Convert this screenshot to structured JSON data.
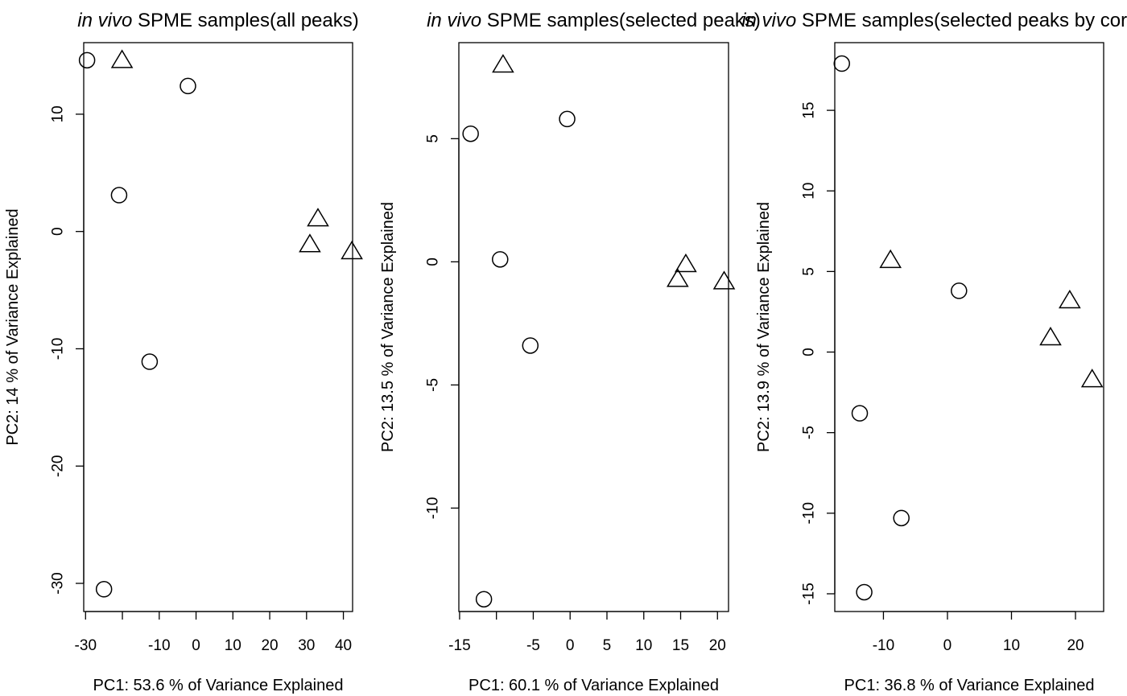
{
  "chart_data": [
    {
      "type": "scatter",
      "title_prefix": "in vivo",
      "title": " SPME samples(all peaks)",
      "xlabel": "PC1: 53.6 % of Variance Explained",
      "ylabel": "PC2: 14 % of Variance Explained",
      "xlim": [
        -30.5,
        42.5
      ],
      "ylim": [
        -32.4,
        16.1
      ],
      "xticks": [
        -30,
        -20,
        -10,
        0,
        10,
        20,
        30,
        40
      ],
      "xtick_labels": [
        "-30",
        "",
        "-10",
        "0",
        "10",
        "20",
        "30",
        "40"
      ],
      "yticks": [
        -30,
        -20,
        -10,
        0,
        10
      ],
      "ytick_labels": [
        "-30",
        "-20",
        "-10",
        "0",
        "10"
      ],
      "series": [
        {
          "marker": "circle",
          "points": [
            [
              -29.6,
              14.6
            ],
            [
              -20.9,
              3.1
            ],
            [
              -12.6,
              -11.1
            ],
            [
              -2.2,
              12.4
            ],
            [
              -25.0,
              -30.5
            ]
          ]
        },
        {
          "marker": "triangle",
          "points": [
            [
              -20.1,
              14.6
            ],
            [
              33.1,
              1.1
            ],
            [
              30.9,
              -1.1
            ],
            [
              42.3,
              -1.7
            ]
          ]
        }
      ]
    },
    {
      "type": "scatter",
      "title_prefix": "in vivo",
      "title": " SPME samples(selected peaks)",
      "xlabel": "PC1: 60.1 % of Variance Explained",
      "ylabel": "PC2: 13.5 % of Variance Explained",
      "xlim": [
        -15.1,
        21.5
      ],
      "ylim": [
        -14.2,
        8.9
      ],
      "xticks": [
        -15,
        -10,
        -5,
        0,
        5,
        10,
        15,
        20
      ],
      "xtick_labels": [
        "-15",
        "",
        "-5",
        "0",
        "5",
        "10",
        "15",
        "20"
      ],
      "yticks": [
        -10,
        -5,
        0,
        5
      ],
      "ytick_labels": [
        "-10",
        "-5",
        "0",
        "5"
      ],
      "series": [
        {
          "marker": "circle",
          "points": [
            [
              -13.5,
              5.2
            ],
            [
              -9.5,
              0.1
            ],
            [
              -5.4,
              -3.4
            ],
            [
              -0.4,
              5.8
            ],
            [
              -11.7,
              -13.7
            ]
          ]
        },
        {
          "marker": "triangle",
          "points": [
            [
              -9.1,
              8.0
            ],
            [
              15.7,
              -0.1
            ],
            [
              14.6,
              -0.7
            ],
            [
              20.9,
              -0.8
            ]
          ]
        }
      ]
    },
    {
      "type": "scatter",
      "title_prefix": "in vivo",
      "title": " SPME samples(selected peaks by correlation)",
      "xlabel": "PC1: 36.8 % of Variance Explained",
      "ylabel": "PC2: 13.9 % of Variance Explained",
      "xlim": [
        -17.6,
        24.4
      ],
      "ylim": [
        -16.1,
        19.2
      ],
      "xticks": [
        -10,
        0,
        10,
        20
      ],
      "xtick_labels": [
        "-10",
        "0",
        "10",
        "20"
      ],
      "yticks": [
        -15,
        -10,
        -5,
        0,
        5,
        10,
        15
      ],
      "ytick_labels": [
        "-15",
        "-10",
        "-5",
        "0",
        "5",
        "10",
        "15"
      ],
      "series": [
        {
          "marker": "circle",
          "points": [
            [
              -16.5,
              17.9
            ],
            [
              1.8,
              3.8
            ],
            [
              -13.7,
              -3.8
            ],
            [
              -7.2,
              -10.3
            ],
            [
              -13.0,
              -14.9
            ]
          ]
        },
        {
          "marker": "triangle",
          "points": [
            [
              -8.9,
              5.7
            ],
            [
              19.1,
              3.2
            ],
            [
              16.1,
              0.9
            ],
            [
              22.6,
              -1.7
            ]
          ]
        }
      ]
    }
  ]
}
